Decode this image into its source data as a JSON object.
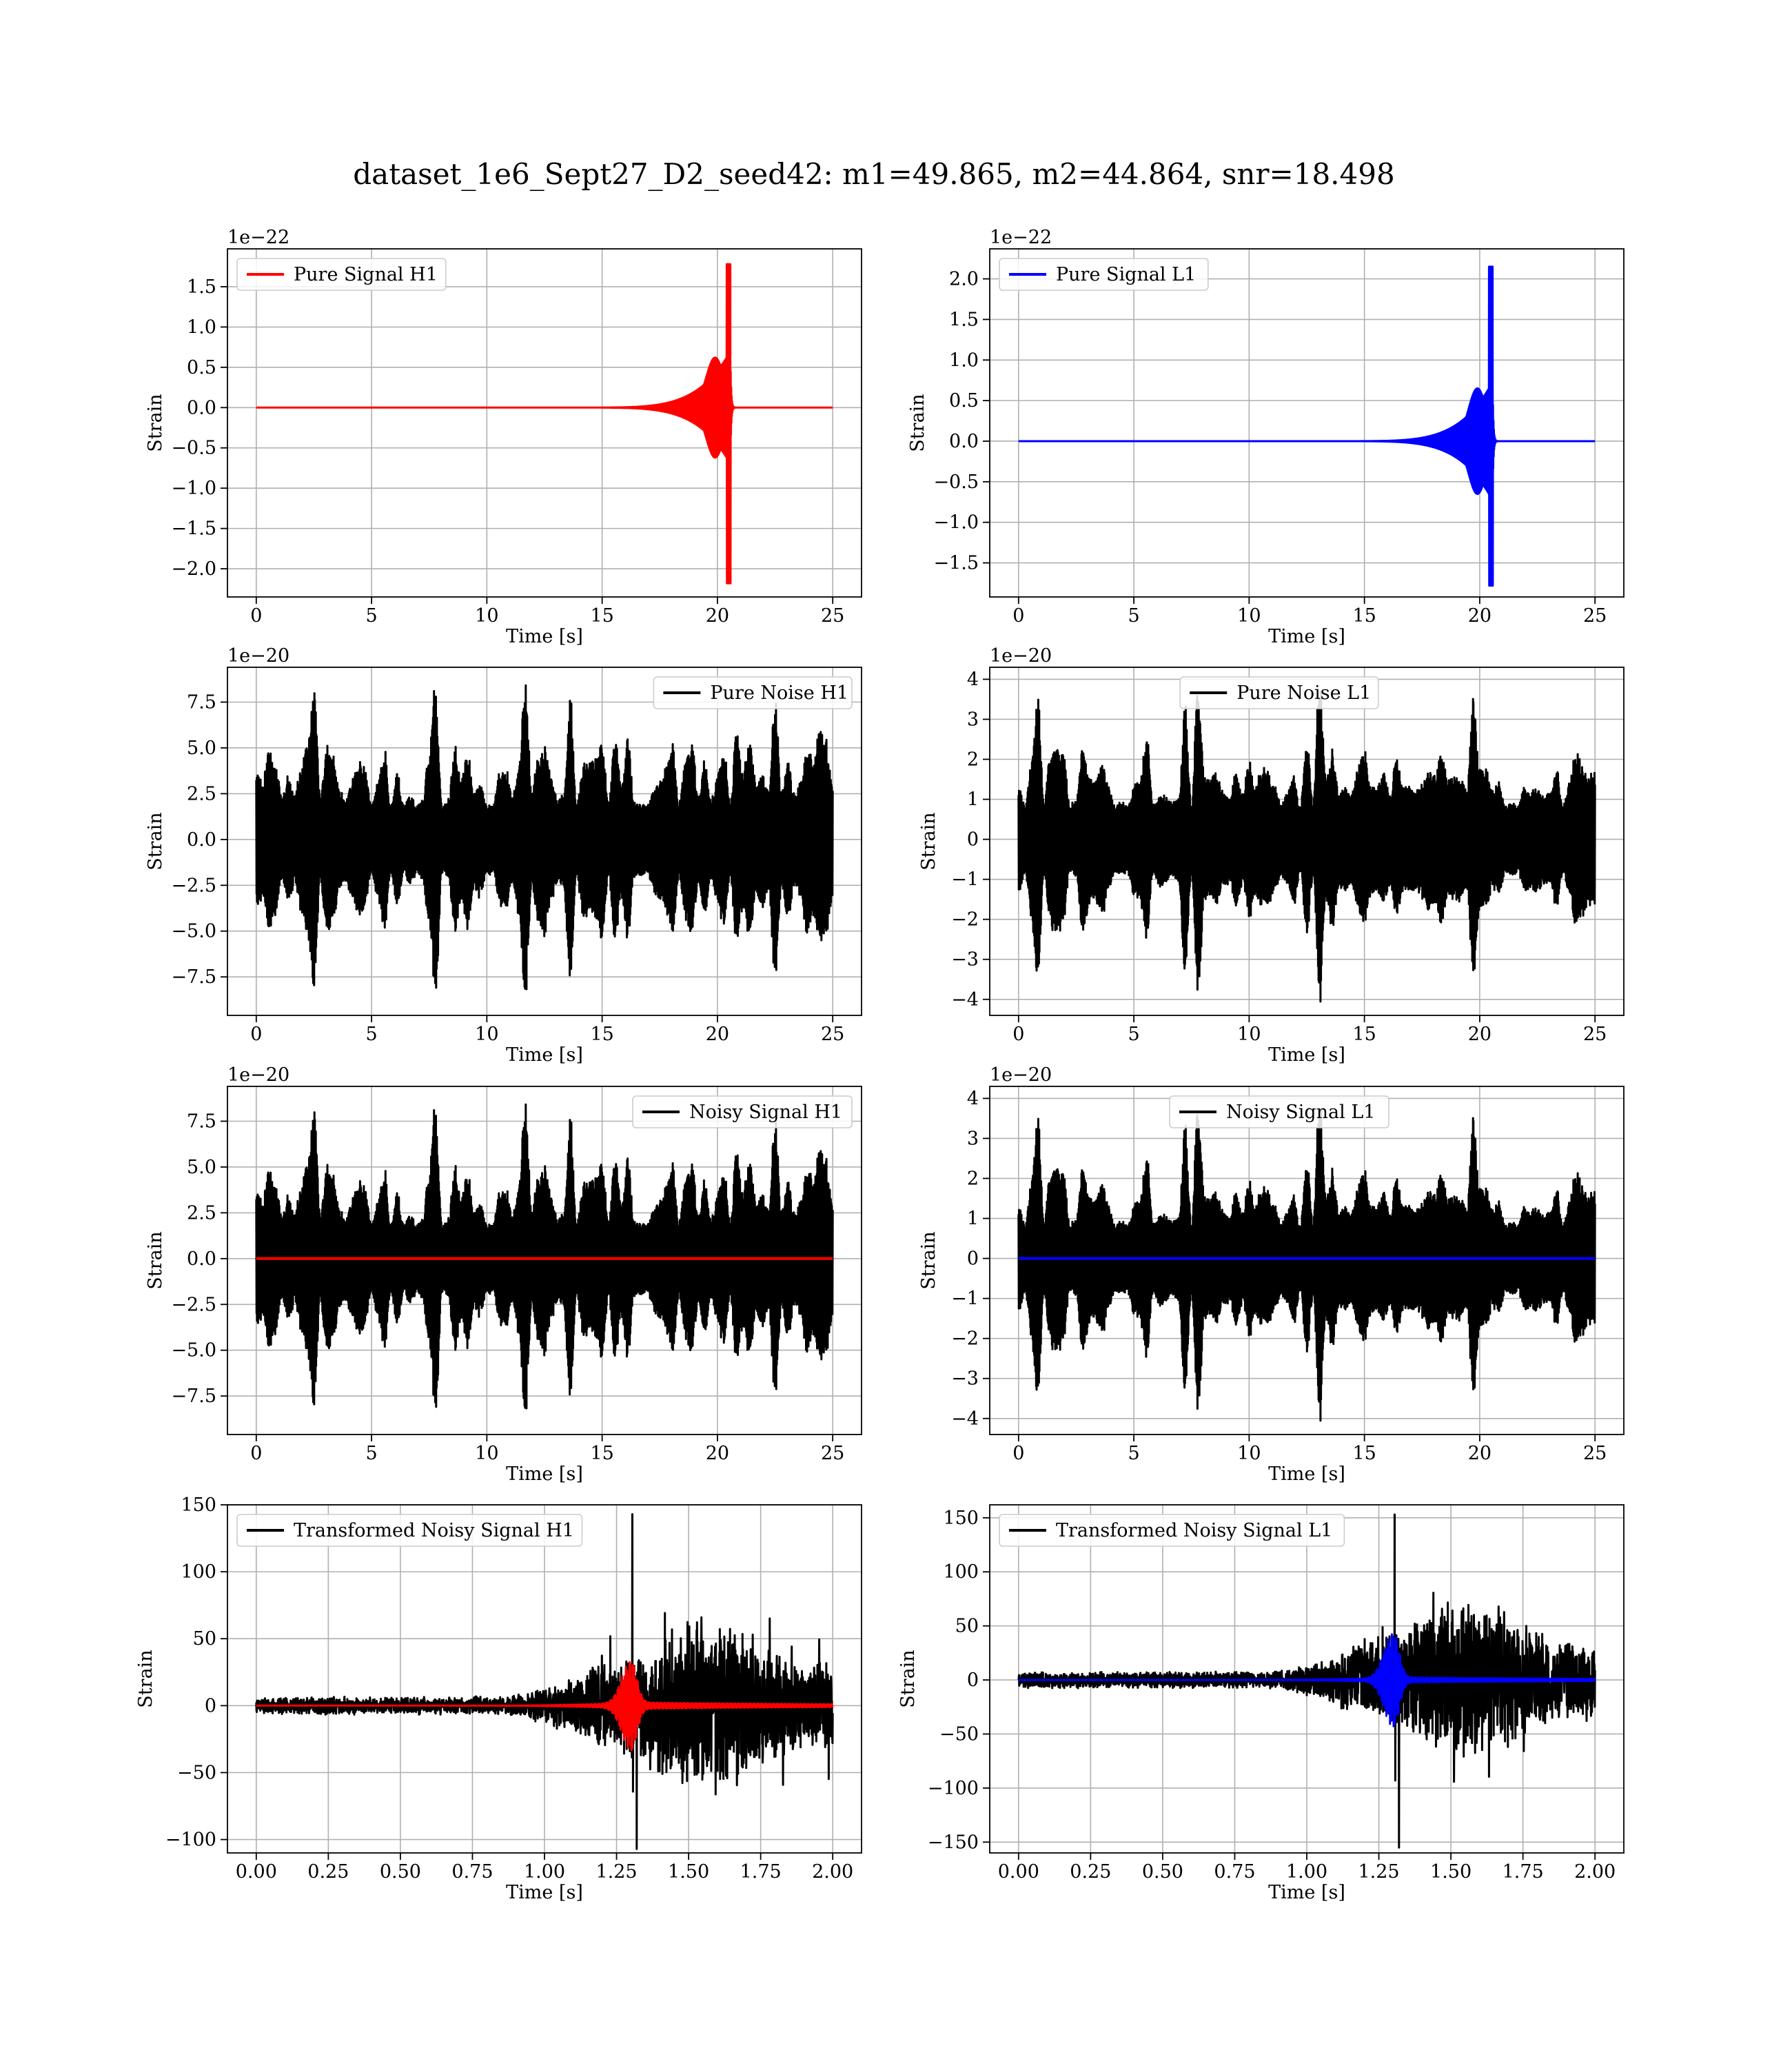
{
  "figure": {
    "title": "dataset_1e6_Sept27_D2_seed42: m1=49.865, m2=44.864, snr=18.498"
  },
  "chart_data": [
    {
      "type": "line",
      "legend": "Pure Signal H1",
      "legend_loc": "upper-left",
      "xlabel": "Time [s]",
      "ylabel": "Strain",
      "offset_text": "1e−22",
      "x_ticks": [
        "0",
        "5",
        "10",
        "15",
        "20",
        "25"
      ],
      "y_ticks": [
        "−2.0",
        "−1.5",
        "−1.0",
        "−0.5",
        "0.0",
        "0.5",
        "1.0",
        "1.5"
      ],
      "xlim": [
        -1.25,
        26.25
      ],
      "ylim": [
        -2.35,
        1.97
      ],
      "grid": true,
      "series": [
        {
          "color": "#ff0000",
          "kind": "chirp",
          "t_start": 0,
          "t_end": 25,
          "t_merge": 20.55,
          "inspiral_start": 13.0,
          "peak_pos": 1.78,
          "peak_neg": -2.18,
          "amp_mid": 0.62
        }
      ]
    },
    {
      "type": "line",
      "legend": "Pure Signal L1",
      "legend_loc": "upper-left",
      "xlabel": "Time [s]",
      "ylabel": "Strain",
      "offset_text": "1e−22",
      "x_ticks": [
        "0",
        "5",
        "10",
        "15",
        "20",
        "25"
      ],
      "y_ticks": [
        "−1.5",
        "−1.0",
        "−0.5",
        "0.0",
        "0.5",
        "1.0",
        "1.5",
        "2.0"
      ],
      "xlim": [
        -1.25,
        26.25
      ],
      "ylim": [
        -1.92,
        2.37
      ],
      "grid": true,
      "series": [
        {
          "color": "#0000ff",
          "kind": "chirp",
          "t_start": 0,
          "t_end": 25,
          "t_merge": 20.55,
          "inspiral_start": 13.0,
          "peak_pos": 2.15,
          "peak_neg": -1.78,
          "amp_mid": 0.65
        }
      ]
    },
    {
      "type": "line",
      "legend": "Pure Noise H1",
      "legend_loc": "upper-right",
      "xlabel": "Time [s]",
      "ylabel": "Strain",
      "offset_text": "1e−20",
      "x_ticks": [
        "0",
        "5",
        "10",
        "15",
        "20",
        "25"
      ],
      "y_ticks": [
        "−7.5",
        "−5.0",
        "−2.5",
        "0.0",
        "2.5",
        "5.0",
        "7.5"
      ],
      "xlim": [
        -1.25,
        26.25
      ],
      "ylim": [
        -9.6,
        9.4
      ],
      "grid": true,
      "series": [
        {
          "color": "#000000",
          "kind": "noise",
          "t_start": 0,
          "t_end": 25,
          "seed": 42,
          "peak": 8.9
        }
      ]
    },
    {
      "type": "line",
      "legend": "Pure Noise L1",
      "legend_loc": "upper-center",
      "xlabel": "Time [s]",
      "ylabel": "Strain",
      "offset_text": "1e−20",
      "x_ticks": [
        "0",
        "5",
        "10",
        "15",
        "20",
        "25"
      ],
      "y_ticks": [
        "−4",
        "−3",
        "−2",
        "−1",
        "0",
        "1",
        "2",
        "3",
        "4"
      ],
      "xlim": [
        -1.25,
        26.25
      ],
      "ylim": [
        -4.4,
        4.3
      ],
      "grid": true,
      "series": [
        {
          "color": "#000000",
          "kind": "noise",
          "t_start": 0,
          "t_end": 25,
          "seed": 77,
          "peak": 4.0
        }
      ]
    },
    {
      "type": "line",
      "legend": "Noisy Signal H1",
      "legend_loc": "upper-right",
      "xlabel": "Time [s]",
      "ylabel": "Strain",
      "offset_text": "1e−20",
      "x_ticks": [
        "0",
        "5",
        "10",
        "15",
        "20",
        "25"
      ],
      "y_ticks": [
        "−7.5",
        "−5.0",
        "−2.5",
        "0.0",
        "2.5",
        "5.0",
        "7.5"
      ],
      "xlim": [
        -1.25,
        26.25
      ],
      "ylim": [
        -9.6,
        9.4
      ],
      "grid": true,
      "series": [
        {
          "color": "#000000",
          "kind": "noise",
          "t_start": 0,
          "t_end": 25,
          "seed": 42,
          "peak": 8.9
        },
        {
          "color": "#ff0000",
          "kind": "flat",
          "t_start": 0,
          "t_end": 25,
          "value": 0
        }
      ]
    },
    {
      "type": "line",
      "legend": "Noisy Signal L1",
      "legend_loc": "upper-center",
      "xlabel": "Time [s]",
      "ylabel": "Strain",
      "offset_text": "1e−20",
      "x_ticks": [
        "0",
        "5",
        "10",
        "15",
        "20",
        "25"
      ],
      "y_ticks": [
        "−4",
        "−3",
        "−2",
        "−1",
        "0",
        "1",
        "2",
        "3",
        "4"
      ],
      "xlim": [
        -1.25,
        26.25
      ],
      "ylim": [
        -4.4,
        4.3
      ],
      "grid": true,
      "series": [
        {
          "color": "#000000",
          "kind": "noise",
          "t_start": 0,
          "t_end": 25,
          "seed": 77,
          "peak": 4.0
        },
        {
          "color": "#0000ff",
          "kind": "flat",
          "t_start": 0,
          "t_end": 25,
          "value": 0
        }
      ]
    },
    {
      "type": "line",
      "legend": "Transformed Noisy Signal H1",
      "legend_loc": "upper-left",
      "xlabel": "Time [s]",
      "ylabel": "Strain",
      "offset_text": "",
      "x_ticks": [
        "0.00",
        "0.25",
        "0.50",
        "0.75",
        "1.00",
        "1.25",
        "1.50",
        "1.75",
        "2.00"
      ],
      "y_ticks": [
        "−100",
        "−50",
        "0",
        "50",
        "100",
        "150"
      ],
      "xlim": [
        -0.1,
        2.1
      ],
      "ylim": [
        -110,
        150
      ],
      "grid": true,
      "series": [
        {
          "color": "#000000",
          "kind": "whitened",
          "t_start": 0,
          "t_end": 2.0,
          "t_rise": 1.2,
          "seed": 5,
          "amp_low": 7,
          "amp_high": 70,
          "spike_max": 143,
          "spike_min": -107
        },
        {
          "color": "#ff0000",
          "kind": "burst",
          "t_start": 0,
          "t_end": 2.0,
          "t_merge": 1.3,
          "amp": 32
        }
      ]
    },
    {
      "type": "line",
      "legend": "Transformed Noisy Signal L1",
      "legend_loc": "upper-left",
      "xlabel": "Time [s]",
      "ylabel": "Strain",
      "offset_text": "",
      "x_ticks": [
        "0.00",
        "0.25",
        "0.50",
        "0.75",
        "1.00",
        "1.25",
        "1.50",
        "1.75",
        "2.00"
      ],
      "y_ticks": [
        "−150",
        "−100",
        "−50",
        "0",
        "50",
        "100",
        "150"
      ],
      "xlim": [
        -0.1,
        2.1
      ],
      "ylim": [
        -160,
        162
      ],
      "grid": true,
      "series": [
        {
          "color": "#000000",
          "kind": "whitened",
          "t_start": 0,
          "t_end": 2.0,
          "t_rise": 1.22,
          "seed": 11,
          "amp_low": 8,
          "amp_high": 80,
          "spike_max": 153,
          "spike_min": -155
        },
        {
          "color": "#0000ff",
          "kind": "burst",
          "t_start": 0,
          "t_end": 2.0,
          "t_merge": 1.3,
          "amp": 42
        }
      ]
    }
  ]
}
